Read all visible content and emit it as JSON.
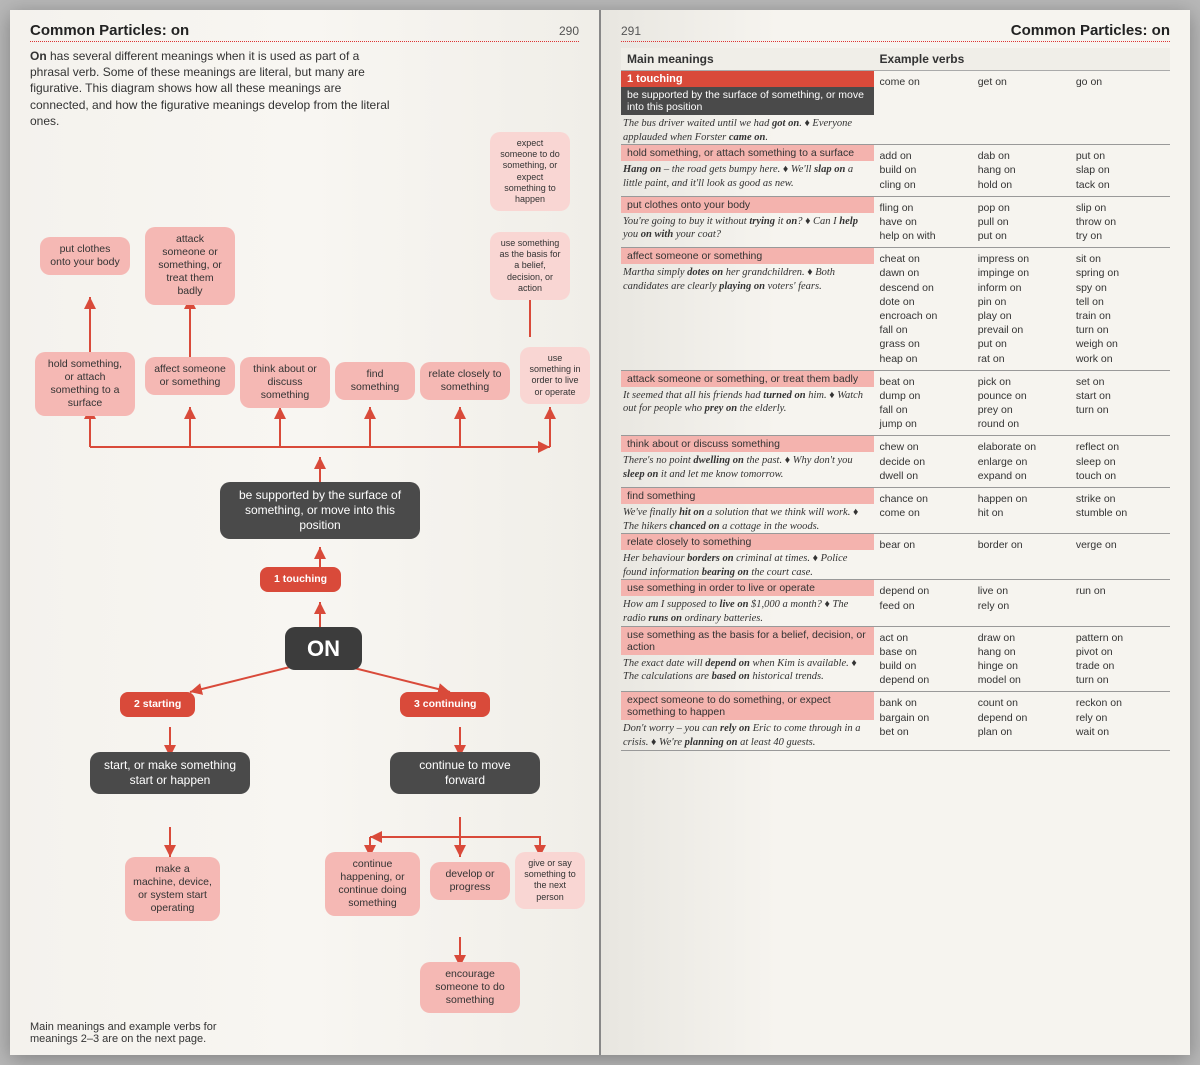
{
  "left": {
    "title": "Common Particles: on",
    "pagenum": "290",
    "intro_lead": "On",
    "intro": " has several different meanings when it is used as part of a phrasal verb. Some of these meanings are literal, but many are figurative. This diagram shows how all these meanings are connected, and how the figurative meanings develop from the literal ones.",
    "footnote": "Main meanings and example verbs for meanings 2–3 are on the next page.",
    "nodes": {
      "expect": "expect someone to do something, or expect something to happen",
      "use_basis": "use something as the basis for a belief, decision, or action",
      "use_live": "use something in order to live or operate",
      "put_clothes": "put clothes onto your body",
      "attack": "attack someone or something, or treat them badly",
      "hold_attach": "hold something, or attach something to a surface",
      "affect": "affect someone or something",
      "think": "think about or discuss something",
      "find": "find something",
      "relate": "relate closely to something",
      "supported": "be supported by the surface of something, or move into this position",
      "touching": "1 touching",
      "on": "ON",
      "starting": "2 starting",
      "continuing": "3 continuing",
      "start_make": "start, or make something start or happen",
      "cont_move": "continue to move forward",
      "make_machine": "make a machine, device, or system start operating",
      "cont_happen": "continue happening, or continue doing something",
      "develop": "develop or progress",
      "give_say": "give or say something to the next person",
      "encourage": "encourage someone to do something"
    }
  },
  "right": {
    "title": "Common Particles: on",
    "pagenum": "291",
    "th_meaning": "Main meanings",
    "th_verbs": "Example verbs",
    "section_label": "1 touching",
    "rows": [
      {
        "head_dark": "be supported by the surface of something, or move into this position",
        "example": "The bus driver waited until we had <b>got on</b>. ♦ Everyone applauded when Forster <b>came on</b>.",
        "verbs": [
          [
            "come on"
          ],
          [
            "get on"
          ],
          [
            "go on"
          ]
        ]
      },
      {
        "head_pink": "hold something, or attach something to a surface",
        "example": "<b>Hang on</b> – the road gets bumpy here. ♦ We'll <b>slap on</b> a little paint, and it'll look as good as new.",
        "verbs": [
          [
            "add on",
            "build on",
            "cling on"
          ],
          [
            "dab on",
            "hang on",
            "hold on"
          ],
          [
            "put on",
            "slap on",
            "tack on"
          ]
        ]
      },
      {
        "head_pink": "put clothes onto your body",
        "example": "You're going to buy it without <b>trying</b> it <b>on</b>? ♦ Can I <b>help</b> you <b>on with</b> your coat?",
        "verbs": [
          [
            "fling on",
            "have on",
            "help on with"
          ],
          [
            "pop on",
            "pull on",
            "put on"
          ],
          [
            "slip on",
            "throw on",
            "try on"
          ]
        ]
      },
      {
        "head_pink": "affect someone or something",
        "example": "Martha simply <b>dotes on</b> her grandchildren. ♦ Both candidates are clearly <b>playing on</b> voters' fears.",
        "verbs": [
          [
            "cheat on",
            "dawn on",
            "descend on",
            "dote on",
            "encroach on",
            "fall on",
            "grass on",
            "heap on"
          ],
          [
            "impress on",
            "impinge on",
            "inform on",
            "pin on",
            "play on",
            "prevail on",
            "put on",
            "rat on"
          ],
          [
            "sit on",
            "spring on",
            "spy on",
            "tell on",
            "train on",
            "turn on",
            "weigh on",
            "work on"
          ]
        ]
      },
      {
        "head_pink": "attack someone or something, or treat them badly",
        "example": "It seemed that all his friends had <b>turned on</b> him. ♦ Watch out for people who <b>prey on</b> the elderly.",
        "verbs": [
          [
            "beat on",
            "dump on",
            "fall on",
            "jump on"
          ],
          [
            "pick on",
            "pounce on",
            "prey on",
            "round on"
          ],
          [
            "set on",
            "start on",
            "turn on"
          ]
        ]
      },
      {
        "head_pink": "think about or discuss something",
        "example": "There's no point <b>dwelling on</b> the past. ♦ Why don't you <b>sleep on</b> it and let me know tomorrow.",
        "verbs": [
          [
            "chew on",
            "decide on",
            "dwell on"
          ],
          [
            "elaborate on",
            "enlarge on",
            "expand on"
          ],
          [
            "reflect on",
            "sleep on",
            "touch on"
          ]
        ]
      },
      {
        "head_pink": "find something",
        "example": "We've finally <b>hit on</b> a solution that we think will work. ♦ The hikers <b>chanced on</b> a cottage in the woods.",
        "verbs": [
          [
            "chance on",
            "come on"
          ],
          [
            "happen on",
            "hit on"
          ],
          [
            "strike on",
            "stumble on"
          ]
        ]
      },
      {
        "head_pink": "relate closely to something",
        "example": "Her behaviour <b>borders on</b> criminal at times. ♦ Police found information <b>bearing on</b> the court case.",
        "verbs": [
          [
            "bear on"
          ],
          [
            "border on"
          ],
          [
            "verge on"
          ]
        ]
      },
      {
        "head_pink": "use something in order to live or operate",
        "example": "How am I supposed to <b>live on</b> $1,000 a month? ♦ The radio <b>runs on</b> ordinary batteries.",
        "verbs": [
          [
            "depend on",
            "feed on"
          ],
          [
            "live on",
            "rely on"
          ],
          [
            "run on"
          ]
        ]
      },
      {
        "head_pink": "use something as the basis for a belief, decision, or action",
        "example": "The exact date will <b>depend on</b> when Kim is available. ♦ The calculations are <b>based on</b> historical trends.",
        "verbs": [
          [
            "act on",
            "base on",
            "build on",
            "depend on"
          ],
          [
            "draw on",
            "hang on",
            "hinge on",
            "model on"
          ],
          [
            "pattern on",
            "pivot on",
            "trade on",
            "turn on"
          ]
        ]
      },
      {
        "head_pink": "expect someone to do something, or expect something to happen",
        "example": "Don't worry – you can <b>rely on</b> Eric to come through in a crisis. ♦ We're <b>planning on</b> at least 40 guests.",
        "verbs": [
          [
            "bank on",
            "bargain on",
            "bet on"
          ],
          [
            "count on",
            "depend on",
            "plan on"
          ],
          [
            "reckon on",
            "rely on",
            "wait on"
          ]
        ]
      }
    ]
  },
  "colors": {
    "red": "#d94a3a",
    "dark": "#4a4a4a",
    "pink": "#f5b8b4",
    "page": "#f6f4ef"
  }
}
